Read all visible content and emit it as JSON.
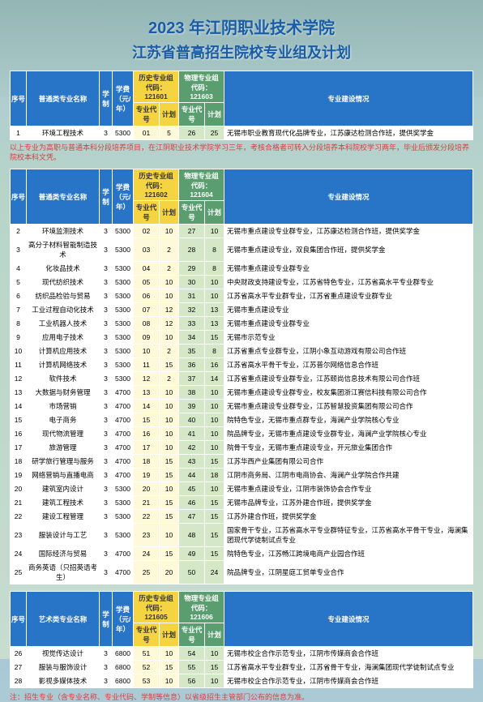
{
  "title": "2023 年江阴职业技术学院",
  "subtitle": "江苏省普高招生院校专业组及计划",
  "headers": {
    "seq": "序号",
    "major_general": "普通类专业名称",
    "major_art": "艺术类专业名称",
    "system": "学制",
    "fee": "学费（元/年）",
    "hist_group": "历史专业组",
    "phys_group": "物理专业组",
    "code_label": "代码：",
    "major_code": "专业代号",
    "plan": "计划",
    "construction": "专业建设情况"
  },
  "codes": {
    "t1_hist": "121601",
    "t1_phys": "121603",
    "t2_hist": "121602",
    "t2_phys": "121604",
    "t3_hist": "121605",
    "t3_phys": "121606"
  },
  "table1": [
    {
      "seq": "1",
      "name": "环境工程技术",
      "sys": "3",
      "fee": "5300",
      "hc": "01",
      "hp": "5",
      "pc": "26",
      "pp": "25",
      "desc": "无锡市职业教育现代化品牌专业，江苏康达检测合作班，提供奖学金"
    }
  ],
  "note1": "以上专业为高职与普通本科分段培养项目，在江阴职业技术学院学习三年，考核合格者可转入分段培养本科院校学习两年，毕业后颁发分段培养院校本科文凭。",
  "table2": [
    {
      "seq": "2",
      "name": "环境监测技术",
      "sys": "3",
      "fee": "5300",
      "hc": "02",
      "hp": "10",
      "pc": "27",
      "pp": "10",
      "desc": "无锡市重点建设专业群专业，江苏康达检测合作班，提供奖学金"
    },
    {
      "seq": "3",
      "name": "高分子材料智能制造技术",
      "sys": "3",
      "fee": "5300",
      "hc": "03",
      "hp": "2",
      "pc": "28",
      "pp": "8",
      "desc": "无锡市重点建设专业，双良集团合作班，提供奖学金"
    },
    {
      "seq": "4",
      "name": "化妆品技术",
      "sys": "3",
      "fee": "5300",
      "hc": "04",
      "hp": "2",
      "pc": "29",
      "pp": "8",
      "desc": "无锡市重点建设专业群专业"
    },
    {
      "seq": "5",
      "name": "现代纺织技术",
      "sys": "3",
      "fee": "5300",
      "hc": "05",
      "hp": "10",
      "pc": "30",
      "pp": "10",
      "desc": "中央财政支持建设专业，江苏省特色专业，江苏省高水平专业群专业"
    },
    {
      "seq": "6",
      "name": "纺织品检验与贸易",
      "sys": "3",
      "fee": "5300",
      "hc": "06",
      "hp": "10",
      "pc": "31",
      "pp": "10",
      "desc": "江苏省高水平专业群专业，江苏省重点建设专业群专业"
    },
    {
      "seq": "7",
      "name": "工业过程自动化技术",
      "sys": "3",
      "fee": "5300",
      "hc": "07",
      "hp": "12",
      "pc": "32",
      "pp": "13",
      "desc": "无锡市重点建设专业"
    },
    {
      "seq": "8",
      "name": "工业机器人技术",
      "sys": "3",
      "fee": "5300",
      "hc": "08",
      "hp": "12",
      "pc": "33",
      "pp": "13",
      "desc": "无锡市重点建设专业群专业"
    },
    {
      "seq": "9",
      "name": "应用电子技术",
      "sys": "3",
      "fee": "5300",
      "hc": "09",
      "hp": "10",
      "pc": "34",
      "pp": "15",
      "desc": "无锡市示范专业"
    },
    {
      "seq": "10",
      "name": "计算机应用技术",
      "sys": "3",
      "fee": "5300",
      "hc": "10",
      "hp": "2",
      "pc": "35",
      "pp": "8",
      "desc": "江苏省重点专业群专业，江阴小象互动游戏有限公司合作班"
    },
    {
      "seq": "11",
      "name": "计算机网络技术",
      "sys": "3",
      "fee": "5300",
      "hc": "11",
      "hp": "15",
      "pc": "36",
      "pp": "16",
      "desc": "江苏省高水平骨干专业，江苏普尔网络信息合作班"
    },
    {
      "seq": "12",
      "name": "软件技术",
      "sys": "3",
      "fee": "5300",
      "hc": "12",
      "hp": "2",
      "pc": "37",
      "pp": "14",
      "desc": "江苏省重点建设专业群专业，江苏颐尚信息技术有限公司合作班"
    },
    {
      "seq": "13",
      "name": "大数据与财务管理",
      "sys": "3",
      "fee": "4700",
      "hc": "13",
      "hp": "10",
      "pc": "38",
      "pp": "10",
      "desc": "无锡市重点建设专业群专业，校友集团浙江赛信科技有限公司合作"
    },
    {
      "seq": "14",
      "name": "市场营销",
      "sys": "3",
      "fee": "4700",
      "hc": "14",
      "hp": "10",
      "pc": "39",
      "pp": "10",
      "desc": "无锡市重点建设专业群专业，江苏智慧投资集团有限公司合作"
    },
    {
      "seq": "15",
      "name": "电子商务",
      "sys": "3",
      "fee": "4700",
      "hc": "15",
      "hp": "10",
      "pc": "40",
      "pp": "10",
      "desc": "院特色专业，无锡市重点群专业，海澜产业学院核心专业"
    },
    {
      "seq": "16",
      "name": "现代物流管理",
      "sys": "3",
      "fee": "4700",
      "hc": "16",
      "hp": "10",
      "pc": "41",
      "pp": "10",
      "desc": "院品牌专业，无锡市重点建设专业群专业，海澜产业学院核心专业"
    },
    {
      "seq": "17",
      "name": "旅游管理",
      "sys": "3",
      "fee": "4700",
      "hc": "17",
      "hp": "10",
      "pc": "42",
      "pp": "10",
      "desc": "院骨干专业，无锡市重点建设专业，开元旅业集团合作"
    },
    {
      "seq": "18",
      "name": "研学旅行管理与服务",
      "sys": "3",
      "fee": "4700",
      "hc": "18",
      "hp": "15",
      "pc": "43",
      "pp": "15",
      "desc": "江苏华西产业集团有限公司合作"
    },
    {
      "seq": "19",
      "name": "网络营销与直播电商",
      "sys": "3",
      "fee": "4700",
      "hc": "19",
      "hp": "15",
      "pc": "44",
      "pp": "18",
      "desc": "江阴市商务局、江阴市电商协会、海澜产业学院合作共建"
    },
    {
      "seq": "20",
      "name": "建筑室内设计",
      "sys": "3",
      "fee": "5300",
      "hc": "20",
      "hp": "10",
      "pc": "45",
      "pp": "10",
      "desc": "无锡市重点建设专业，江阴市装饰协会合作专业"
    },
    {
      "seq": "21",
      "name": "建筑工程技术",
      "sys": "3",
      "fee": "5300",
      "hc": "21",
      "hp": "15",
      "pc": "46",
      "pp": "15",
      "desc": "无锡市品牌专业，江苏外建合作班，提供奖学金"
    },
    {
      "seq": "22",
      "name": "建设工程管理",
      "sys": "3",
      "fee": "5300",
      "hc": "22",
      "hp": "15",
      "pc": "47",
      "pp": "15",
      "desc": "江苏外建合作班，提供奖学金"
    },
    {
      "seq": "23",
      "name": "服装设计与工艺",
      "sys": "3",
      "fee": "5300",
      "hc": "23",
      "hp": "10",
      "pc": "48",
      "pp": "15",
      "desc": "国家骨干专业，江苏省高水平专业群特征专业，江苏省高水平骨干专业，海澜集团现代学徒制试点专业"
    },
    {
      "seq": "24",
      "name": "国际经济与贸易",
      "sys": "3",
      "fee": "4700",
      "hc": "24",
      "hp": "15",
      "pc": "49",
      "pp": "15",
      "desc": "院特色专业，江苏畅江跨境电商产业园合作班"
    },
    {
      "seq": "25",
      "name": "商务英语（只招英语考生）",
      "sys": "3",
      "fee": "4700",
      "hc": "25",
      "hp": "20",
      "pc": "50",
      "pp": "24",
      "desc": "院品牌专业，江阴星庭工贸单专业合作"
    }
  ],
  "table3": [
    {
      "seq": "26",
      "name": "视觉传达设计",
      "sys": "3",
      "fee": "6800",
      "hc": "51",
      "hp": "10",
      "pc": "54",
      "pp": "10",
      "desc": "无锡市校企合作示范专业，江阴市传媒商会合作班"
    },
    {
      "seq": "27",
      "name": "服装与服饰设计",
      "sys": "3",
      "fee": "6800",
      "hc": "52",
      "hp": "15",
      "pc": "55",
      "pp": "15",
      "desc": "江苏省高水平专业群专业，江苏省骨干专业，海澜集团现代学徒制试点专业"
    },
    {
      "seq": "28",
      "name": "影视多媒体技术",
      "sys": "3",
      "fee": "6800",
      "hc": "53",
      "hp": "10",
      "pc": "56",
      "pp": "10",
      "desc": "无锡市校企合作示范专业，江阴市传媒商会合作班"
    }
  ],
  "footnote": "注：招生专业（含专业名称、专业代码、学制等信息）以省级招生主管部门公布的信息为准。"
}
